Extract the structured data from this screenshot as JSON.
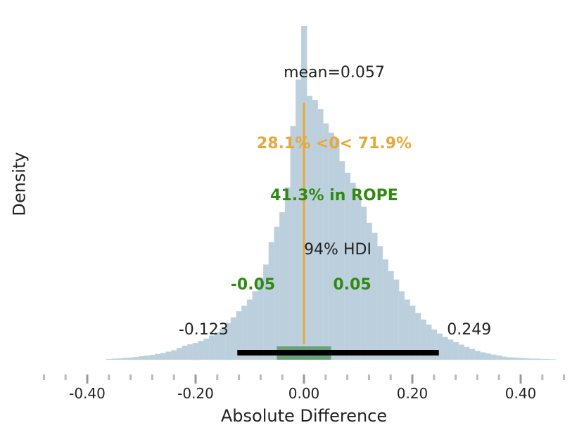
{
  "chart_data": {
    "type": "histogram",
    "xlabel": "Absolute Difference",
    "ylabel": "Density",
    "xlim": [
      -0.48,
      0.48
    ],
    "ylim": [
      0,
      1
    ],
    "x_tick_labels": [
      "-0.40",
      "-0.20",
      "0.00",
      "0.20",
      "0.40"
    ],
    "x_ticks": [
      -0.4,
      -0.2,
      0.0,
      0.2,
      0.4
    ],
    "minor_ticks": [
      -0.48,
      -0.44,
      -0.36,
      -0.32,
      -0.28,
      -0.24,
      -0.16,
      -0.12,
      -0.08,
      -0.04,
      0.04,
      0.08,
      0.12,
      0.16,
      0.24,
      0.28,
      0.32,
      0.36,
      0.44,
      0.48
    ],
    "bin_width": 0.01,
    "bins": [
      {
        "x": -0.36,
        "h": 0.002
      },
      {
        "x": -0.35,
        "h": 0.003
      },
      {
        "x": -0.34,
        "h": 0.004
      },
      {
        "x": -0.33,
        "h": 0.005
      },
      {
        "x": -0.32,
        "h": 0.006
      },
      {
        "x": -0.31,
        "h": 0.008
      },
      {
        "x": -0.3,
        "h": 0.01
      },
      {
        "x": -0.29,
        "h": 0.012
      },
      {
        "x": -0.28,
        "h": 0.014
      },
      {
        "x": -0.27,
        "h": 0.017
      },
      {
        "x": -0.26,
        "h": 0.02
      },
      {
        "x": -0.25,
        "h": 0.024
      },
      {
        "x": -0.24,
        "h": 0.028
      },
      {
        "x": -0.23,
        "h": 0.035
      },
      {
        "x": -0.22,
        "h": 0.042
      },
      {
        "x": -0.21,
        "h": 0.046
      },
      {
        "x": -0.2,
        "h": 0.05
      },
      {
        "x": -0.19,
        "h": 0.056
      },
      {
        "x": -0.18,
        "h": 0.063
      },
      {
        "x": -0.17,
        "h": 0.072
      },
      {
        "x": -0.16,
        "h": 0.082
      },
      {
        "x": -0.15,
        "h": 0.092
      },
      {
        "x": -0.14,
        "h": 0.11
      },
      {
        "x": -0.13,
        "h": 0.127
      },
      {
        "x": -0.12,
        "h": 0.145
      },
      {
        "x": -0.11,
        "h": 0.162
      },
      {
        "x": -0.1,
        "h": 0.18
      },
      {
        "x": -0.09,
        "h": 0.205
      },
      {
        "x": -0.08,
        "h": 0.246
      },
      {
        "x": -0.07,
        "h": 0.285
      },
      {
        "x": -0.06,
        "h": 0.352
      },
      {
        "x": -0.05,
        "h": 0.398
      },
      {
        "x": -0.04,
        "h": 0.442
      },
      {
        "x": -0.03,
        "h": 0.516
      },
      {
        "x": -0.02,
        "h": 0.7
      },
      {
        "x": -0.01,
        "h": 0.839
      },
      {
        "x": 0.0,
        "h": 1.0
      },
      {
        "x": 0.01,
        "h": 0.79
      },
      {
        "x": 0.02,
        "h": 0.778
      },
      {
        "x": 0.03,
        "h": 0.751
      },
      {
        "x": 0.04,
        "h": 0.708
      },
      {
        "x": 0.05,
        "h": 0.68
      },
      {
        "x": 0.06,
        "h": 0.662
      },
      {
        "x": 0.07,
        "h": 0.595
      },
      {
        "x": 0.08,
        "h": 0.56
      },
      {
        "x": 0.09,
        "h": 0.53
      },
      {
        "x": 0.1,
        "h": 0.494
      },
      {
        "x": 0.11,
        "h": 0.458
      },
      {
        "x": 0.12,
        "h": 0.41
      },
      {
        "x": 0.13,
        "h": 0.38
      },
      {
        "x": 0.14,
        "h": 0.34
      },
      {
        "x": 0.15,
        "h": 0.3
      },
      {
        "x": 0.16,
        "h": 0.265
      },
      {
        "x": 0.17,
        "h": 0.24
      },
      {
        "x": 0.18,
        "h": 0.205
      },
      {
        "x": 0.19,
        "h": 0.18
      },
      {
        "x": 0.2,
        "h": 0.162
      },
      {
        "x": 0.21,
        "h": 0.14
      },
      {
        "x": 0.22,
        "h": 0.12
      },
      {
        "x": 0.23,
        "h": 0.105
      },
      {
        "x": 0.24,
        "h": 0.09
      },
      {
        "x": 0.25,
        "h": 0.078
      },
      {
        "x": 0.26,
        "h": 0.068
      },
      {
        "x": 0.27,
        "h": 0.06
      },
      {
        "x": 0.28,
        "h": 0.052
      },
      {
        "x": 0.29,
        "h": 0.045
      },
      {
        "x": 0.3,
        "h": 0.038
      },
      {
        "x": 0.31,
        "h": 0.032
      },
      {
        "x": 0.32,
        "h": 0.026
      },
      {
        "x": 0.33,
        "h": 0.022
      },
      {
        "x": 0.34,
        "h": 0.018
      },
      {
        "x": 0.35,
        "h": 0.015
      },
      {
        "x": 0.36,
        "h": 0.012
      },
      {
        "x": 0.37,
        "h": 0.009
      },
      {
        "x": 0.38,
        "h": 0.007
      },
      {
        "x": 0.39,
        "h": 0.006
      },
      {
        "x": 0.4,
        "h": 0.005
      },
      {
        "x": 0.41,
        "h": 0.004
      },
      {
        "x": 0.42,
        "h": 0.003
      },
      {
        "x": 0.43,
        "h": 0.003
      },
      {
        "x": 0.44,
        "h": 0.002
      },
      {
        "x": 0.45,
        "h": 0.002
      },
      {
        "x": 0.46,
        "h": 0.001
      }
    ],
    "reference_value": 0,
    "ref_line_top": 0.77,
    "mean": 0.057,
    "mean_label": "mean=0.057",
    "ref_label": "28.1% <0< 71.9%",
    "rope": [
      -0.05,
      0.05
    ],
    "rope_label": "41.3% in ROPE",
    "rope_low_label": "-0.05",
    "rope_high_label": "0.05",
    "hdi": [
      -0.123,
      0.249
    ],
    "hdi_label": "94% HDI",
    "hdi_low_label": "-0.123",
    "hdi_high_label": "0.249",
    "colors": {
      "bars": "#bccfdd",
      "ref_line": "#e7a83a",
      "ref_text": "#e7a83a",
      "rope_bar": "#5b9a68",
      "rope_text": "#2f8b10",
      "hdi_bar": "#000000",
      "text": "#222222",
      "ticks": "#bbbbbb"
    }
  }
}
